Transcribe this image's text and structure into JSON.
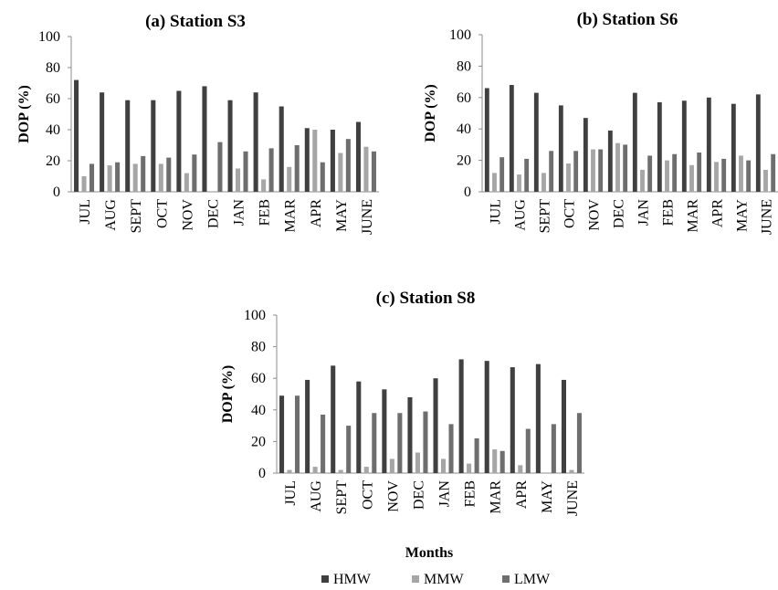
{
  "legend": [
    {
      "label": "HMW",
      "color": "#404040"
    },
    {
      "label": "MMW",
      "color": "#a6a6a6"
    },
    {
      "label": "LMW",
      "color": "#6e6e6e"
    }
  ],
  "xlabel": "Months",
  "chart_data": [
    {
      "type": "bar",
      "title": "(a) Station S3",
      "ylabel": "DOP (%)",
      "ylim": [
        0,
        100
      ],
      "yticks": [
        0,
        20,
        40,
        60,
        80,
        100
      ],
      "categories": [
        "JUL",
        "AUG",
        "SEPT",
        "OCT",
        "NOV",
        "DEC",
        "JAN",
        "FEB",
        "MAR",
        "APR",
        "MAY",
        "JUNE"
      ],
      "series": [
        {
          "name": "HMW",
          "values": [
            72,
            64,
            59,
            59,
            65,
            68,
            59,
            64,
            55,
            41,
            40,
            45
          ]
        },
        {
          "name": "MMW",
          "values": [
            10,
            17,
            18,
            18,
            12,
            0,
            15,
            8,
            16,
            40,
            25,
            29
          ]
        },
        {
          "name": "LMW",
          "values": [
            18,
            19,
            23,
            22,
            24,
            32,
            26,
            28,
            30,
            19,
            34,
            26
          ]
        }
      ]
    },
    {
      "type": "bar",
      "title": "(b) Station S6",
      "ylabel": "DOP (%)",
      "ylim": [
        0,
        100
      ],
      "yticks": [
        0,
        20,
        40,
        60,
        80,
        100
      ],
      "categories": [
        "JUL",
        "AUG",
        "SEPT",
        "OCT",
        "NOV",
        "DEC",
        "JAN",
        "FEB",
        "MAR",
        "APR",
        "MAY",
        "JUNE"
      ],
      "series": [
        {
          "name": "HMW",
          "values": [
            66,
            68,
            63,
            55,
            47,
            39,
            63,
            57,
            58,
            60,
            56,
            62
          ]
        },
        {
          "name": "MMW",
          "values": [
            12,
            11,
            12,
            18,
            27,
            31,
            14,
            20,
            17,
            19,
            23,
            14
          ]
        },
        {
          "name": "LMW",
          "values": [
            22,
            21,
            26,
            26,
            27,
            30,
            23,
            24,
            25,
            21,
            20,
            24
          ]
        }
      ]
    },
    {
      "type": "bar",
      "title": "(c) Station S8",
      "ylabel": "DOP (%)",
      "ylim": [
        0,
        100
      ],
      "yticks": [
        0,
        20,
        40,
        60,
        80,
        100
      ],
      "categories": [
        "JUL",
        "AUG",
        "SEPT",
        "OCT",
        "NOV",
        "DEC",
        "JAN",
        "FEB",
        "MAR",
        "APR",
        "MAY",
        "JUNE"
      ],
      "series": [
        {
          "name": "HMW",
          "values": [
            49,
            59,
            68,
            58,
            53,
            48,
            60,
            72,
            71,
            67,
            69,
            59
          ]
        },
        {
          "name": "MMW",
          "values": [
            2,
            4,
            2,
            4,
            9,
            13,
            9,
            6,
            15,
            5,
            0,
            2
          ]
        },
        {
          "name": "LMW",
          "values": [
            49,
            37,
            30,
            38,
            38,
            39,
            31,
            22,
            14,
            28,
            31,
            38
          ]
        }
      ]
    }
  ]
}
